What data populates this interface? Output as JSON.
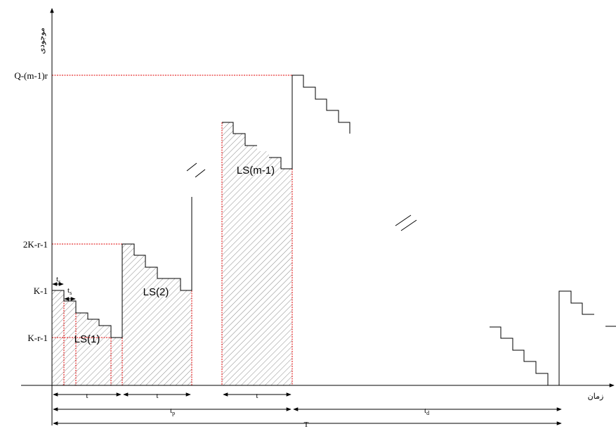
{
  "axes": {
    "y_title": "موجودی",
    "x_title": "زمان"
  },
  "y_ticks": {
    "q": "Q-(m-1)r",
    "k2": "2K-r-1",
    "k1": "K-1",
    "kr": "K-r-1"
  },
  "regions": {
    "ls1": "LS(1)",
    "ls2": "LS(2)",
    "lsm": "LS(m-1)"
  },
  "intervals": {
    "t": "t",
    "ts_base": "t",
    "ts_sub": "s",
    "tp_base": "t",
    "tp_sub": "p",
    "td_base": "t",
    "td_sub": "d",
    "T": "T"
  },
  "colors": {
    "line": "#000000",
    "guide": "#e00000",
    "hatch": "#8a8a8a"
  }
}
